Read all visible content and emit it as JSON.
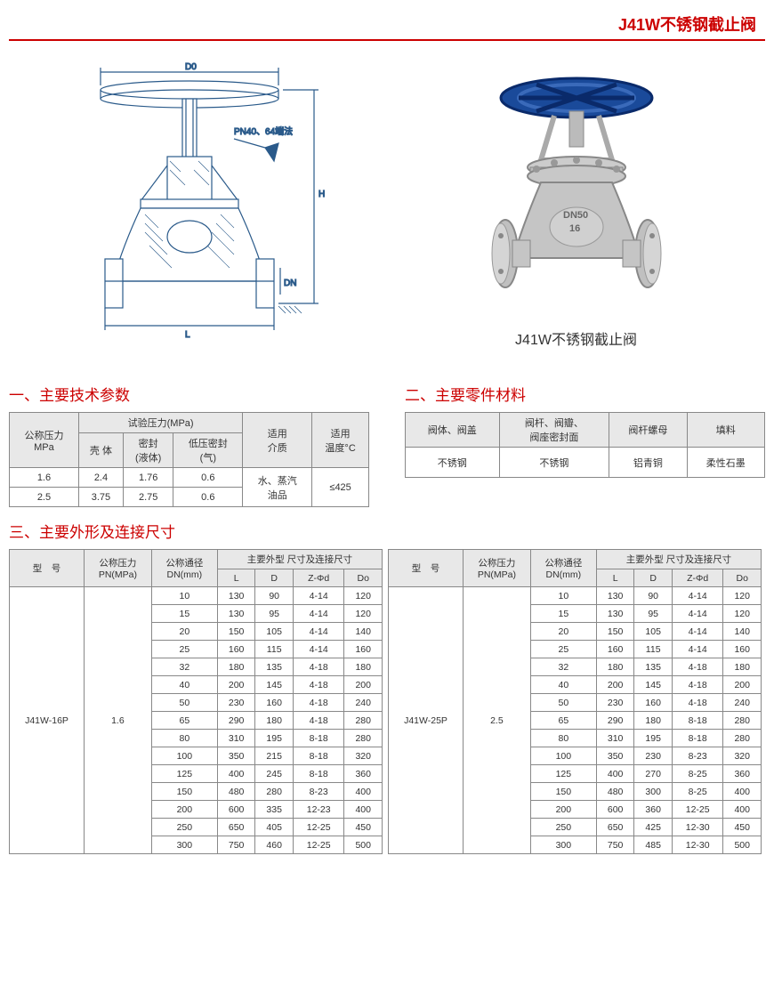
{
  "page_title": "J41W不锈钢截止阀",
  "diagram": {
    "labels": {
      "D0": "D0",
      "L": "L",
      "H": "H",
      "DN": "DN",
      "note": "PN40、64端法"
    },
    "stroke": "#2a5a8a"
  },
  "photo_caption": "J41W不锈钢截止阀",
  "section1": {
    "title": "一、主要技术参数",
    "headers": {
      "nominal_p": "公称压力\nMPa",
      "test_p": "试验压力(MPa)",
      "shell": "壳 体",
      "seal_liquid": "密封\n(液体)",
      "seal_gas": "低压密封\n(气)",
      "medium": "适用\n介质",
      "temp": "适用\n温度°C"
    },
    "rows": [
      [
        "1.6",
        "2.4",
        "1.76",
        "0.6"
      ],
      [
        "2.5",
        "3.75",
        "2.75",
        "0.6"
      ]
    ],
    "medium_val": "水、蒸汽\n油品",
    "temp_val": "≤425"
  },
  "section2": {
    "title": "二、主要零件材料",
    "headers": [
      "阀体、阀盖",
      "阀杆、阀瓣、\n阀座密封面",
      "阀杆螺母",
      "填料"
    ],
    "row": [
      "不锈钢",
      "不锈钢",
      "铝青铜",
      "柔性石墨"
    ]
  },
  "section3": {
    "title": "三、主要外形及连接尺寸",
    "col_headers": {
      "model": "型　号",
      "pn": "公称压力\nPN(MPa)",
      "dn": "公称通径\nDN(mm)",
      "main": "主要外型 尺寸及连接尺寸",
      "L": "L",
      "D": "D",
      "Zphi": "Z-Φd",
      "Do": "Do"
    },
    "left": {
      "model": "J41W-16P",
      "pn": "1.6",
      "rows": [
        [
          "10",
          "130",
          "90",
          "4-14",
          "120"
        ],
        [
          "15",
          "130",
          "95",
          "4-14",
          "120"
        ],
        [
          "20",
          "150",
          "105",
          "4-14",
          "140"
        ],
        [
          "25",
          "160",
          "115",
          "4-14",
          "160"
        ],
        [
          "32",
          "180",
          "135",
          "4-18",
          "180"
        ],
        [
          "40",
          "200",
          "145",
          "4-18",
          "200"
        ],
        [
          "50",
          "230",
          "160",
          "4-18",
          "240"
        ],
        [
          "65",
          "290",
          "180",
          "4-18",
          "280"
        ],
        [
          "80",
          "310",
          "195",
          "8-18",
          "280"
        ],
        [
          "100",
          "350",
          "215",
          "8-18",
          "320"
        ],
        [
          "125",
          "400",
          "245",
          "8-18",
          "360"
        ],
        [
          "150",
          "480",
          "280",
          "8-23",
          "400"
        ],
        [
          "200",
          "600",
          "335",
          "12-23",
          "400"
        ],
        [
          "250",
          "650",
          "405",
          "12-25",
          "450"
        ],
        [
          "300",
          "750",
          "460",
          "12-25",
          "500"
        ]
      ]
    },
    "right": {
      "model": "J41W-25P",
      "pn": "2.5",
      "rows": [
        [
          "10",
          "130",
          "90",
          "4-14",
          "120"
        ],
        [
          "15",
          "130",
          "95",
          "4-14",
          "120"
        ],
        [
          "20",
          "150",
          "105",
          "4-14",
          "140"
        ],
        [
          "25",
          "160",
          "115",
          "4-14",
          "160"
        ],
        [
          "32",
          "180",
          "135",
          "4-18",
          "180"
        ],
        [
          "40",
          "200",
          "145",
          "4-18",
          "200"
        ],
        [
          "50",
          "230",
          "160",
          "4-18",
          "240"
        ],
        [
          "65",
          "290",
          "180",
          "8-18",
          "280"
        ],
        [
          "80",
          "310",
          "195",
          "8-18",
          "280"
        ],
        [
          "100",
          "350",
          "230",
          "8-23",
          "320"
        ],
        [
          "125",
          "400",
          "270",
          "8-25",
          "360"
        ],
        [
          "150",
          "480",
          "300",
          "8-25",
          "400"
        ],
        [
          "200",
          "600",
          "360",
          "12-25",
          "400"
        ],
        [
          "250",
          "650",
          "425",
          "12-30",
          "450"
        ],
        [
          "300",
          "750",
          "485",
          "12-30",
          "500"
        ]
      ]
    }
  }
}
